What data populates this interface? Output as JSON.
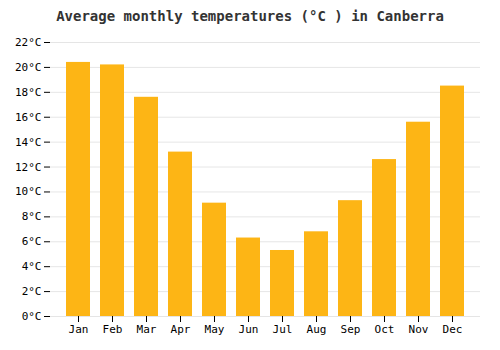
{
  "chart_data": {
    "type": "bar",
    "title": "Average monthly temperatures (°C ) in Canberra",
    "categories": [
      "Jan",
      "Feb",
      "Mar",
      "Apr",
      "May",
      "Jun",
      "Jul",
      "Aug",
      "Sep",
      "Oct",
      "Nov",
      "Dec"
    ],
    "values": [
      20.4,
      20.2,
      17.6,
      13.2,
      9.1,
      6.3,
      5.3,
      6.8,
      9.3,
      12.6,
      15.6,
      18.5
    ],
    "color": "#FDB515",
    "ylim": [
      0,
      22
    ],
    "yticks": [
      {
        "value": 0,
        "label": "0°C"
      },
      {
        "value": 2,
        "label": "2°C"
      },
      {
        "value": 4,
        "label": "4°C"
      },
      {
        "value": 6,
        "label": "6°C"
      },
      {
        "value": 8,
        "label": "8°C"
      },
      {
        "value": 10,
        "label": "10°C"
      },
      {
        "value": 12,
        "label": "12°C"
      },
      {
        "value": 14,
        "label": "14°C"
      },
      {
        "value": 16,
        "label": "16°C"
      },
      {
        "value": 18,
        "label": "18°C"
      },
      {
        "value": 20,
        "label": "20°C"
      },
      {
        "value": 22,
        "label": "22°C"
      }
    ],
    "grid": true
  }
}
